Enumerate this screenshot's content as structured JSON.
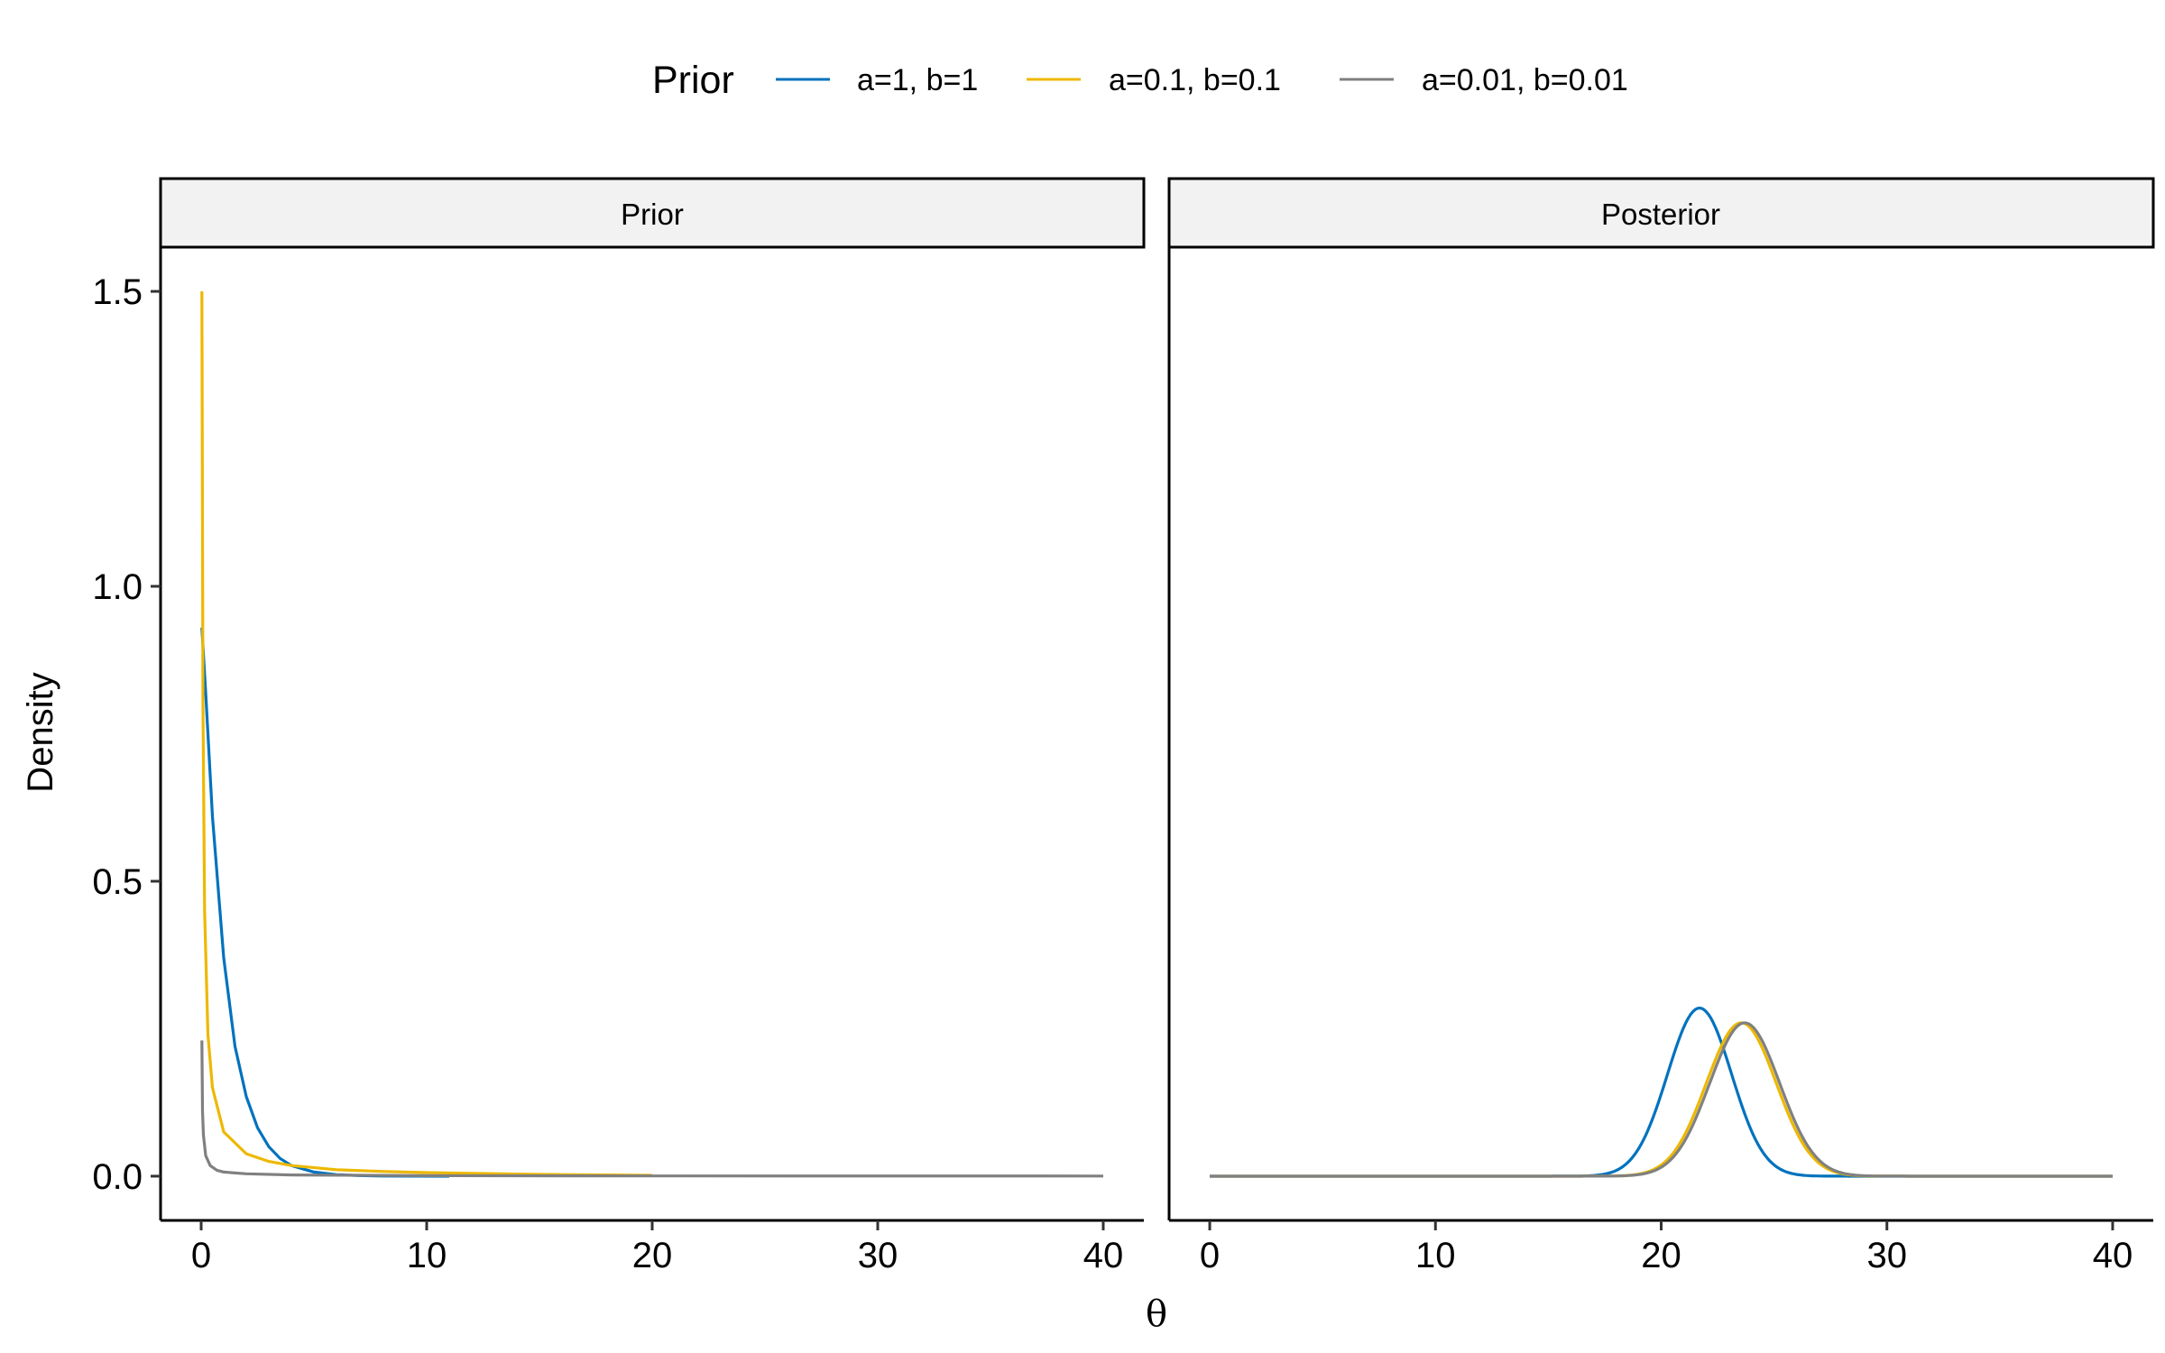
{
  "chart_data": {
    "type": "line",
    "legend": {
      "title": "Prior",
      "placement": "top",
      "entries": [
        {
          "label": "a=1, b=1",
          "color": "#0072BD"
        },
        {
          "label": "a=0.1, b=0.1",
          "color": "#EDB800"
        },
        {
          "label": "a=0.01, b=0.01",
          "color": "#808080"
        }
      ]
    },
    "xlabel": "θ",
    "ylabel": "Density",
    "xlim": [
      0,
      40
    ],
    "ylim": [
      0,
      1.5
    ],
    "x_ticks": [
      "0",
      "10",
      "20",
      "30",
      "40"
    ],
    "y_ticks": [
      "0.0",
      "0.5",
      "1.0",
      "1.5"
    ],
    "x_tick_values": [
      0,
      10,
      20,
      30,
      40
    ],
    "y_tick_values": [
      0.0,
      0.5,
      1.0,
      1.5
    ],
    "grid": false,
    "panels": [
      {
        "label": "Prior",
        "series": [
          {
            "legend": "a=1, b=1",
            "x_range": [
              0.03,
              11
            ],
            "points": [
              [
                0.03,
                0.93
              ],
              [
                0.2,
                0.82
              ],
              [
                0.5,
                0.61
              ],
              [
                1,
                0.37
              ],
              [
                1.5,
                0.22
              ],
              [
                2,
                0.135
              ],
              [
                2.5,
                0.082
              ],
              [
                3,
                0.05
              ],
              [
                3.5,
                0.03
              ],
              [
                4,
                0.018
              ],
              [
                5,
                0.007
              ],
              [
                6,
                0.0025
              ],
              [
                7,
                0.001
              ],
              [
                8,
                0.0003
              ],
              [
                11,
                0.0
              ]
            ]
          },
          {
            "legend": "a=0.1, b=0.1",
            "x_range": [
              0.03,
              20
            ],
            "points": [
              [
                0.03,
                1.5
              ],
              [
                0.08,
                0.8
              ],
              [
                0.15,
                0.45
              ],
              [
                0.3,
                0.24
              ],
              [
                0.5,
                0.15
              ],
              [
                1,
                0.075
              ],
              [
                2,
                0.038
              ],
              [
                3,
                0.025
              ],
              [
                4,
                0.018
              ],
              [
                6,
                0.011
              ],
              [
                8,
                0.008
              ],
              [
                10,
                0.006
              ],
              [
                15,
                0.003
              ],
              [
                20,
                0.0015
              ]
            ]
          },
          {
            "legend": "a=0.01, b=0.01",
            "x_range": [
              0.03,
              40
            ],
            "points": [
              [
                0.03,
                0.23
              ],
              [
                0.06,
                0.11
              ],
              [
                0.1,
                0.07
              ],
              [
                0.2,
                0.035
              ],
              [
                0.4,
                0.018
              ],
              [
                0.7,
                0.01
              ],
              [
                1,
                0.007
              ],
              [
                2,
                0.004
              ],
              [
                4,
                0.002
              ],
              [
                10,
                0.0008
              ],
              [
                20,
                0.0004
              ],
              [
                40,
                0.0002
              ]
            ]
          }
        ]
      },
      {
        "label": "Posterior",
        "series": [
          {
            "legend": "a=1, b=1",
            "x_range": [
              0,
              40
            ],
            "mode": 21.7,
            "peak": 0.285,
            "sd": 1.42
          },
          {
            "legend": "a=0.1, b=0.1",
            "x_range": [
              0,
              40
            ],
            "mode": 23.55,
            "peak": 0.26,
            "sd": 1.55
          },
          {
            "legend": "a=0.01, b=0.01",
            "x_range": [
              0,
              40
            ],
            "mode": 23.7,
            "peak": 0.26,
            "sd": 1.55
          }
        ]
      }
    ]
  }
}
